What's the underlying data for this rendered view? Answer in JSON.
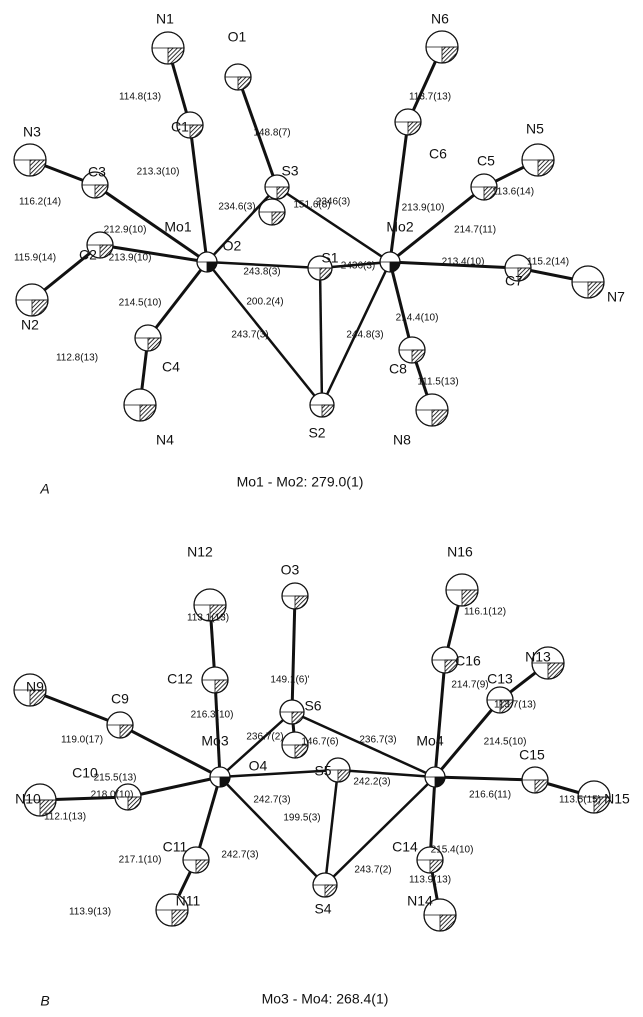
{
  "panels": [
    {
      "letter": "A",
      "caption": "Mo1 - Mo2: 279.0(1)",
      "atoms": [
        "Mo1",
        "Mo2",
        "S1",
        "S2",
        "S3",
        "O1",
        "O2",
        "C1",
        "N1",
        "C2",
        "N2",
        "C3",
        "N3",
        "C4",
        "N4",
        "C5",
        "N5",
        "C6",
        "N6",
        "C7",
        "N7",
        "C8",
        "N8"
      ],
      "bond_labels": [
        "114.8(13)",
        "148.8(7)",
        "113.7(13)",
        "213.3(10)",
        "213.9(10)",
        "116.2(14)",
        "212.9(10)",
        "234.6(3)",
        "151.6(8)",
        "2346(3)",
        "113.6(14)",
        "214.7(11)",
        "115.9(14)",
        "213.9(10)",
        "243.8(3)",
        "2436(3)",
        "213.4(10)",
        "115.2(14)",
        "200.2(4)",
        "214.5(10)",
        "243.7(3)",
        "244.8(3)",
        "214.4(10)",
        "112.8(13)",
        "111.5(13)"
      ]
    },
    {
      "letter": "B",
      "caption": "Mo3 - Mo4: 268.4(1)",
      "atoms": [
        "Mo3",
        "Mo4",
        "S5",
        "S4",
        "S6",
        "O3",
        "O4",
        "C12",
        "N12",
        "C10",
        "N10",
        "C9",
        "N9",
        "C11",
        "N11",
        "C13",
        "N13",
        "C16",
        "N16",
        "C15",
        "N15",
        "C14",
        "N14"
      ],
      "bond_labels": [
        "113.1(13)",
        "149.1(6)'",
        "116.1(12)",
        "216.3(10)",
        "214.7(9)",
        "236.7(2)",
        "146.7(6)",
        "236.7(3)",
        "113.7(13)",
        "119.0(17)",
        "215.5(13)",
        "214.5(10)",
        "218.0(10)",
        "242.7(3)",
        "242.2(3)",
        "216.6(11)",
        "112.1(13)",
        "199.5(3)",
        "113.5(15)",
        "217.1(10)",
        "242.7(3)",
        "243.7(2)",
        "215.4(10)",
        "113.9(13)",
        "113.9(13)"
      ]
    }
  ]
}
